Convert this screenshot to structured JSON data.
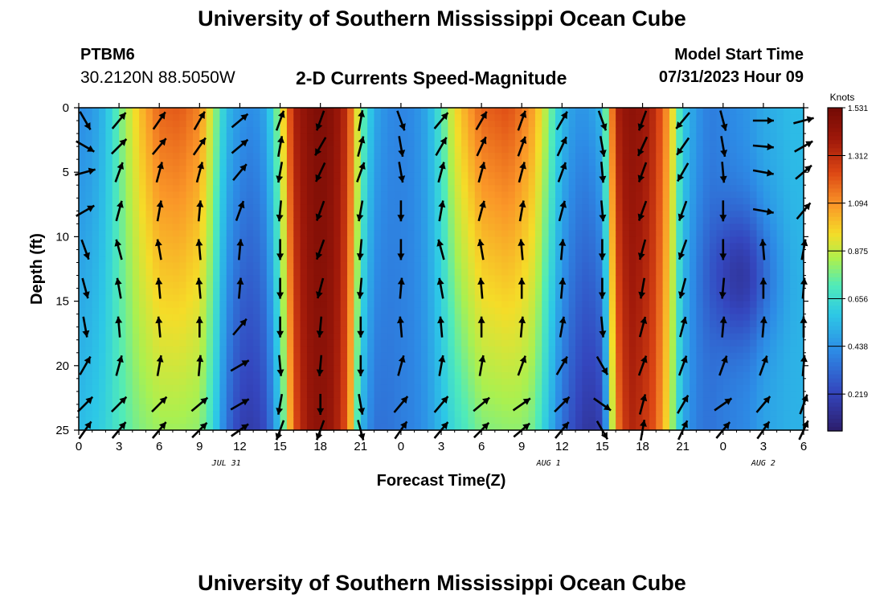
{
  "header": {
    "title": "University of Southern Mississippi Ocean Cube",
    "station_id": "PTBM6",
    "coordinates": "30.2120N  88.5050W",
    "subtitle": "2-D Currents Speed-Magnitude",
    "model_start_label": "Model Start Time",
    "model_start_value": "07/31/2023 Hour 09"
  },
  "footer": {
    "title": "University of Southern Mississippi Ocean Cube"
  },
  "colors": {
    "low": "#2c1d6b",
    "mid": "#3fe6c8",
    "high": "#7a0a05",
    "arrow": "#000000",
    "axis": "#000000"
  },
  "chart_data": {
    "type": "heatmap",
    "title": "2-D Currents Speed-Magnitude",
    "xlabel": "Forecast Time(Z)",
    "ylabel": "Depth (ft)",
    "x_range_hours": [
      0,
      54
    ],
    "y_range_ft": [
      0,
      25
    ],
    "x_ticks": [
      "0",
      "3",
      "6",
      "9",
      "12",
      "15",
      "18",
      "21",
      "0",
      "3",
      "6",
      "9",
      "12",
      "15",
      "18",
      "21",
      "0",
      "3",
      "6"
    ],
    "y_ticks": [
      "0",
      "5",
      "10",
      "15",
      "20",
      "25"
    ],
    "y_tick_values": [
      0,
      5,
      10,
      15,
      20,
      25
    ],
    "date_labels": [
      {
        "label": "JUL 31",
        "hour": 11
      },
      {
        "label": "AUG 1",
        "hour": 35
      },
      {
        "label": "AUG 2",
        "hour": 51
      }
    ],
    "colorbar": {
      "title": "Knots",
      "min": 0.05,
      "max": 1.531,
      "ticks": [
        "1.531",
        "1.312",
        "1.094",
        "0.875",
        "0.656",
        "0.438",
        "0.219"
      ],
      "tick_values": [
        1.531,
        1.312,
        1.094,
        0.875,
        0.656,
        0.438,
        0.219
      ]
    },
    "speed_profile": {
      "hours": [
        0,
        1,
        2,
        3,
        4.5,
        6,
        7.5,
        9,
        10,
        11,
        12,
        13,
        14,
        15,
        16,
        17,
        18,
        19,
        20,
        21,
        22,
        23,
        24,
        25,
        26,
        27,
        28,
        30,
        32,
        33,
        34,
        35,
        36,
        37,
        38,
        39,
        40,
        41,
        42,
        43,
        44,
        45,
        46,
        47,
        48,
        50,
        51,
        52,
        53,
        54
      ],
      "surface": [
        0.42,
        0.45,
        0.55,
        0.75,
        1.0,
        1.18,
        1.2,
        1.12,
        0.85,
        0.55,
        0.45,
        0.42,
        0.5,
        0.85,
        1.35,
        1.45,
        1.5,
        1.45,
        1.3,
        0.8,
        0.5,
        0.42,
        0.4,
        0.42,
        0.5,
        0.7,
        0.95,
        1.18,
        1.22,
        1.15,
        1.05,
        0.8,
        0.55,
        0.45,
        0.45,
        0.55,
        1.35,
        1.45,
        1.42,
        1.3,
        1.05,
        0.6,
        0.45,
        0.38,
        0.4,
        0.45,
        0.5,
        0.52,
        0.55,
        0.55
      ],
      "deep": [
        0.55,
        0.58,
        0.62,
        0.7,
        0.78,
        0.82,
        0.82,
        0.8,
        0.65,
        0.35,
        0.2,
        0.18,
        0.25,
        0.6,
        1.2,
        1.4,
        1.45,
        1.4,
        1.2,
        0.55,
        0.35,
        0.35,
        0.38,
        0.4,
        0.45,
        0.55,
        0.65,
        0.78,
        0.8,
        0.8,
        0.75,
        0.55,
        0.35,
        0.22,
        0.15,
        0.2,
        1.1,
        1.35,
        1.3,
        1.2,
        0.9,
        0.5,
        0.38,
        0.35,
        0.38,
        0.42,
        0.48,
        0.5,
        0.52,
        0.52
      ],
      "lowmid_hour": 49.5,
      "lowmid_depth": 13
    },
    "vectors": {
      "columns_hours": [
        0,
        3,
        6,
        9,
        12,
        15,
        18,
        21,
        24,
        27,
        30,
        33,
        36,
        39,
        42,
        45,
        48,
        51,
        54
      ],
      "rows_depth_ft": [
        1,
        3,
        5,
        8,
        11,
        14,
        17,
        20,
        23,
        25
      ],
      "direction_deg": [
        [
          150,
          40,
          35,
          30,
          50,
          20,
          200,
          10,
          160,
          40,
          30,
          20,
          30,
          160,
          200,
          220,
          165,
          90,
          75
        ],
        [
          120,
          45,
          40,
          35,
          50,
          10,
          210,
          15,
          170,
          30,
          25,
          20,
          25,
          170,
          205,
          215,
          170,
          95,
          60
        ],
        [
          75,
          20,
          15,
          15,
          40,
          190,
          205,
          20,
          170,
          15,
          15,
          15,
          20,
          175,
          200,
          210,
          175,
          100,
          50
        ],
        [
          60,
          15,
          10,
          5,
          20,
          185,
          200,
          190,
          180,
          10,
          15,
          10,
          15,
          175,
          200,
          200,
          180,
          100,
          40
        ],
        [
          160,
          345,
          350,
          355,
          5,
          180,
          200,
          185,
          180,
          345,
          350,
          355,
          5,
          180,
          195,
          200,
          180,
          355,
          10
        ],
        [
          165,
          350,
          355,
          355,
          5,
          180,
          195,
          185,
          5,
          350,
          355,
          0,
          5,
          180,
          190,
          195,
          185,
          0,
          5
        ],
        [
          170,
          355,
          355,
          0,
          40,
          180,
          185,
          180,
          355,
          355,
          0,
          5,
          10,
          175,
          15,
          15,
          5,
          5,
          0
        ],
        [
          30,
          15,
          10,
          5,
          60,
          175,
          185,
          180,
          15,
          10,
          10,
          20,
          30,
          150,
          20,
          20,
          20,
          20,
          5
        ],
        [
          45,
          45,
          45,
          50,
          60,
          190,
          180,
          170,
          40,
          40,
          50,
          55,
          45,
          125,
          15,
          30,
          55,
          40,
          20
        ],
        [
          35,
          40,
          40,
          45,
          55,
          200,
          200,
          165,
          35,
          40,
          45,
          50,
          40,
          150,
          10,
          25,
          40,
          35,
          25
        ]
      ]
    }
  }
}
